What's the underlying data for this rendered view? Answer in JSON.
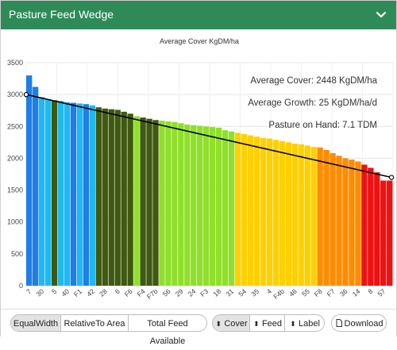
{
  "header": {
    "title": "Pasture Feed Wedge"
  },
  "chart_data": {
    "type": "bar",
    "title": "Average Cover KgDM/ha",
    "ylim": [
      0,
      3500
    ],
    "yticks": [
      0,
      500,
      1000,
      1500,
      2000,
      2500,
      3000,
      3500
    ],
    "bars": [
      {
        "label": "7",
        "value": 3300,
        "color": "#1e7ee6"
      },
      {
        "label": "",
        "value": 3120,
        "color": "#1e7ee6"
      },
      {
        "label": "30",
        "value": 2960,
        "color": "#1fb8f0"
      },
      {
        "label": "",
        "value": 2930,
        "color": "#1fb8f0"
      },
      {
        "label": "5",
        "value": 2910,
        "color": "#3f5a10"
      },
      {
        "label": "",
        "value": 2900,
        "color": "#1fb8f0"
      },
      {
        "label": "40",
        "value": 2880,
        "color": "#1fb8f0"
      },
      {
        "label": "",
        "value": 2870,
        "color": "#1e7ee6"
      },
      {
        "label": "F1",
        "value": 2860,
        "color": "#1fb8f0"
      },
      {
        "label": "",
        "value": 2850,
        "color": "#1e7ee6"
      },
      {
        "label": "42",
        "value": 2830,
        "color": "#1fb8f0"
      },
      {
        "label": "",
        "value": 2800,
        "color": "#3f5a10"
      },
      {
        "label": "28",
        "value": 2780,
        "color": "#3f5a10"
      },
      {
        "label": "",
        "value": 2770,
        "color": "#3f5a10"
      },
      {
        "label": "6",
        "value": 2760,
        "color": "#3f5a10"
      },
      {
        "label": "",
        "value": 2730,
        "color": "#3f5a10"
      },
      {
        "label": "F6",
        "value": 2700,
        "color": "#3f5a10"
      },
      {
        "label": "",
        "value": 2660,
        "color": "#8fe02a"
      },
      {
        "label": "F4",
        "value": 2640,
        "color": "#3f5a10"
      },
      {
        "label": "",
        "value": 2620,
        "color": "#3f5a10"
      },
      {
        "label": "F7b",
        "value": 2600,
        "color": "#3f5a10"
      },
      {
        "label": "",
        "value": 2590,
        "color": "#8fe02a"
      },
      {
        "label": "56",
        "value": 2580,
        "color": "#8fe02a"
      },
      {
        "label": "",
        "value": 2570,
        "color": "#8fe02a"
      },
      {
        "label": "29",
        "value": 2550,
        "color": "#8fe02a"
      },
      {
        "label": "",
        "value": 2530,
        "color": "#8fe02a"
      },
      {
        "label": "24",
        "value": 2520,
        "color": "#8fe02a"
      },
      {
        "label": "",
        "value": 2510,
        "color": "#8fe02a"
      },
      {
        "label": "F3",
        "value": 2500,
        "color": "#8fe02a"
      },
      {
        "label": "",
        "value": 2490,
        "color": "#8fe02a"
      },
      {
        "label": "18",
        "value": 2480,
        "color": "#8fe02a"
      },
      {
        "label": "",
        "value": 2440,
        "color": "#8fe02a"
      },
      {
        "label": "31",
        "value": 2420,
        "color": "#8fe02a"
      },
      {
        "label": "",
        "value": 2400,
        "color": "#ffd000"
      },
      {
        "label": "54",
        "value": 2380,
        "color": "#ffd000"
      },
      {
        "label": "",
        "value": 2360,
        "color": "#ffd000"
      },
      {
        "label": "35",
        "value": 2340,
        "color": "#ffd000"
      },
      {
        "label": "",
        "value": 2320,
        "color": "#ffd000"
      },
      {
        "label": "4",
        "value": 2310,
        "color": "#ffd000"
      },
      {
        "label": "",
        "value": 2290,
        "color": "#ffd000"
      },
      {
        "label": "F4b",
        "value": 2270,
        "color": "#ffd000"
      },
      {
        "label": "",
        "value": 2250,
        "color": "#ffd000"
      },
      {
        "label": "46",
        "value": 2230,
        "color": "#ffd000"
      },
      {
        "label": "",
        "value": 2220,
        "color": "#ffd000"
      },
      {
        "label": "55",
        "value": 2200,
        "color": "#ffd000"
      },
      {
        "label": "",
        "value": 2180,
        "color": "#ffd000"
      },
      {
        "label": "F8",
        "value": 2170,
        "color": "#ff8c00"
      },
      {
        "label": "",
        "value": 2130,
        "color": "#ff8c00"
      },
      {
        "label": "F7",
        "value": 2080,
        "color": "#ff8c00"
      },
      {
        "label": "",
        "value": 2040,
        "color": "#ff8c00"
      },
      {
        "label": "36",
        "value": 2000,
        "color": "#ff8c00"
      },
      {
        "label": "",
        "value": 1980,
        "color": "#ff8c00"
      },
      {
        "label": "14",
        "value": 1950,
        "color": "#ff8c00"
      },
      {
        "label": "",
        "value": 1900,
        "color": "#ee1111"
      },
      {
        "label": "8",
        "value": 1850,
        "color": "#ee1111"
      },
      {
        "label": "",
        "value": 1780,
        "color": "#ee1111"
      },
      {
        "label": "57",
        "value": 1650,
        "color": "#ee1111"
      },
      {
        "label": "",
        "value": 1650,
        "color": "#ee1111"
      }
    ],
    "target_line": {
      "start": 3000,
      "end": 1700
    },
    "annotations": [
      "Average Cover: 2448 KgDM/ha",
      "Average Growth: 25 KgDM/ha/d",
      "Pasture on Hand: 7.1 TDM"
    ],
    "grid": true
  },
  "toolbar": {
    "equal_width": "EqualWidth",
    "relative_to_area": "RelativeTo Area",
    "total_feed_available": "Total Feed Available",
    "cover": "Cover",
    "feed": "Feed",
    "label": "Label",
    "download": "Download",
    "sort_icon": "sort-icon",
    "download_icon": "file-icon"
  }
}
